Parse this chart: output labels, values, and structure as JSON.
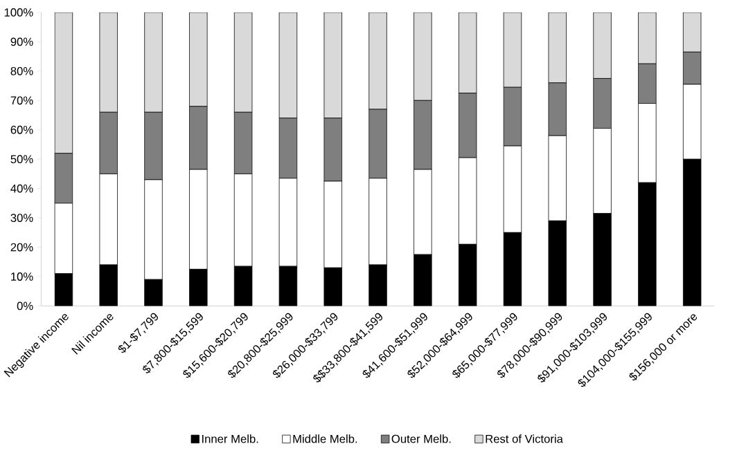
{
  "chart_data": {
    "type": "bar",
    "stacked": true,
    "categories": [
      "Negative income",
      "Nil income",
      "$1-$7,799",
      "$7,800-$15,599",
      "$15,600-$20,799",
      "$20,800-$25,999",
      "$26,000-$33,799",
      "$$33,800-$41,599",
      "$41,600-$51,999",
      "$52,000-$64,999",
      "$65,000-$77,999",
      "$78,000-$90,999",
      "$91,000-$103,999",
      "$104,000-$155,999",
      "$156,000 or more"
    ],
    "series": [
      {
        "name": "Inner Melb.",
        "color": "#000000",
        "values": [
          11,
          14,
          9,
          12.5,
          13.5,
          13.5,
          13,
          14,
          17.5,
          21,
          25,
          29,
          31.5,
          42,
          50
        ]
      },
      {
        "name": "Middle Melb.",
        "color": "#ffffff",
        "values": [
          24,
          31,
          34,
          34,
          31.5,
          30,
          29.5,
          29.5,
          29,
          29.5,
          29.5,
          29,
          29,
          27,
          25.5
        ]
      },
      {
        "name": "Outer Melb.",
        "color": "#7f7f7f",
        "values": [
          17,
          21,
          23,
          21.5,
          21,
          20.5,
          21.5,
          23.5,
          23.5,
          22,
          20,
          18,
          17,
          13.5,
          11
        ]
      },
      {
        "name": "Rest of Victoria",
        "color": "#d9d9d9",
        "values": [
          48,
          34,
          34,
          32,
          34,
          36,
          36,
          33,
          30,
          27.5,
          25.5,
          24,
          22.5,
          17.5,
          13.5
        ]
      }
    ],
    "ylim": [
      0,
      100
    ],
    "yticks": [
      {
        "value": 0,
        "label": "0%"
      },
      {
        "value": 10,
        "label": "10%"
      },
      {
        "value": 20,
        "label": "20%"
      },
      {
        "value": 30,
        "label": "30%"
      },
      {
        "value": 40,
        "label": "40%"
      },
      {
        "value": 50,
        "label": "50%"
      },
      {
        "value": 60,
        "label": "60%"
      },
      {
        "value": 70,
        "label": "70%"
      },
      {
        "value": 80,
        "label": "80%"
      },
      {
        "value": 90,
        "label": "90%"
      },
      {
        "value": 100,
        "label": "100%"
      }
    ],
    "grid": false,
    "legend": "bottom"
  }
}
